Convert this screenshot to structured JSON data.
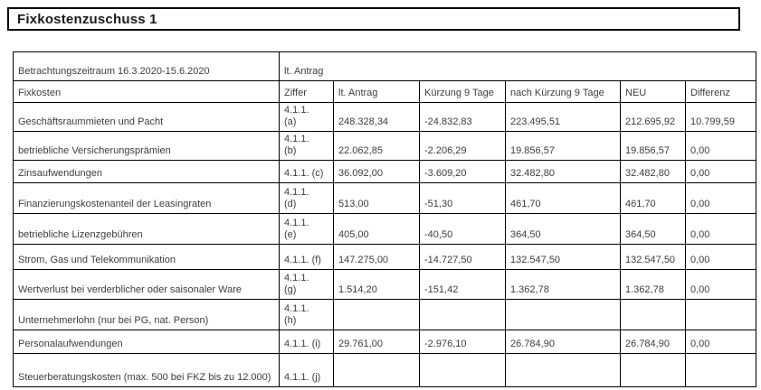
{
  "title": "Fixkostenzuschuss 1",
  "table": {
    "period_label": "Betrachtungszeitraum 16.3.2020-15.6.2020",
    "group_header": "lt. Antrag",
    "columns": [
      "Fixkosten",
      "Ziffer",
      "lt. Antrag",
      "Kürzung 9 Tage",
      "nach Kürzung 9 Tage",
      "NEU",
      "Differenz"
    ],
    "rows": [
      {
        "label": "Geschäftsraummieten und Pacht",
        "ziffer": "4.1.1.\n(a)",
        "values": [
          "248.328,34",
          "-24.832,83",
          "223.495,51",
          "212.695,92",
          "10.799,59"
        ]
      },
      {
        "label": "betriebliche Versicherungsprämien",
        "ziffer": "4.1.1.\n(b)",
        "values": [
          "22.062,85",
          "-2.206,29",
          "19.856,57",
          "19.856,57",
          "0,00"
        ]
      },
      {
        "label": "Zinsaufwendungen",
        "ziffer": "4.1.1. (c)",
        "values": [
          "36.092,00",
          "-3.609,20",
          "32.482,80",
          "32.482,80",
          "0,00"
        ]
      },
      {
        "label": "Finanzierungskostenanteil der Leasingraten",
        "ziffer": "4.1.1.\n(d)",
        "values": [
          "513,00",
          "-51,30",
          "461,70",
          "461,70",
          "0,00"
        ]
      },
      {
        "label": "betriebliche Lizenzgebühren",
        "ziffer": "4.1.1.\n(e)",
        "values": [
          "405,00",
          "-40,50",
          "364,50",
          "364,50",
          "0,00"
        ]
      },
      {
        "label": "Strom, Gas und Telekommunikation",
        "ziffer": "4.1.1. (f)",
        "values": [
          "147.275,00",
          "-14.727,50",
          "132.547,50",
          "132.547,50",
          "0,00"
        ]
      },
      {
        "label": "Wertverlust bei verderblicher oder saisonaler Ware",
        "ziffer": "4.1.1.\n(g)",
        "values": [
          "1.514,20",
          "-151,42",
          "1.362,78",
          "1.362,78",
          "0,00"
        ]
      },
      {
        "label": "Unternehmerlohn (nur bei PG, nat. Person)",
        "ziffer": "4.1.1.\n(h)",
        "values": [
          "",
          "",
          "",
          "",
          ""
        ]
      },
      {
        "label": "Personalaufwendungen",
        "ziffer": "4.1.1. (i)",
        "values": [
          "29.761,00",
          "-2.976,10",
          "26.784,90",
          "26.784,90",
          "0,00"
        ]
      },
      {
        "label": "Steuerberatungskosten (max. 500 bei FKZ bis zu 12.000)",
        "ziffer": "4.1.1. (j)",
        "values": [
          "",
          "",
          "",
          "",
          ""
        ]
      }
    ]
  }
}
